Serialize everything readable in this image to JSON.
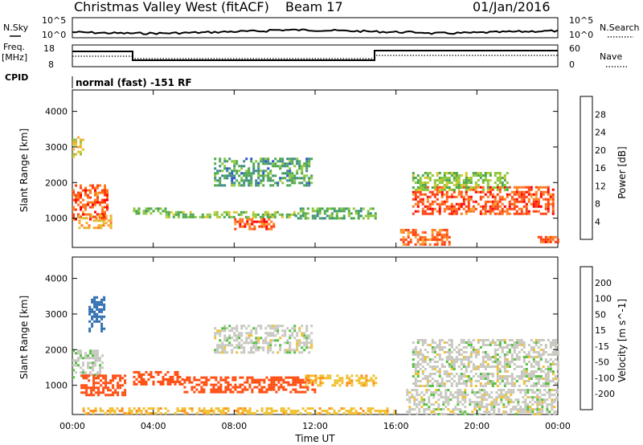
{
  "header": {
    "title": "Christmas Valley West (fitACF)",
    "beam": "Beam 17",
    "date": "01/Jan/2016"
  },
  "top_panels": {
    "nsky_label": "N.Sky",
    "nsearch_label": "N.Search",
    "noise_ticks": [
      "10^5",
      "10^0"
    ],
    "freq_label_1": "Freq.",
    "freq_label_2": "[MHz]",
    "freq_ticks": [
      "18",
      "8"
    ],
    "nave_label": "Nave",
    "nave_ticks": [
      "60",
      "0"
    ],
    "cpid_label": "CPID",
    "cpid_text": "normal (fast) -151 RF"
  },
  "axes": {
    "ylabel": "Slant Range [km]",
    "xlabel": "Time UT",
    "y_ticks": [
      "1000",
      "2000",
      "3000",
      "4000"
    ],
    "x_ticks": [
      "00:00",
      "04:00",
      "08:00",
      "12:00",
      "16:00",
      "20:00",
      "00:00"
    ]
  },
  "power_colorbar": {
    "label": "Power [dB]",
    "ticks": [
      "4",
      "8",
      "12",
      "16",
      "20",
      "24",
      "28"
    ],
    "colors": [
      "#1c1cff",
      "#2a55c8",
      "#3f8a8a",
      "#4da84d",
      "#8cc83c",
      "#d8c832",
      "#f7a830",
      "#ff7820",
      "#ff4010",
      "#ff0000"
    ]
  },
  "velocity_colorbar": {
    "label": "Velocity [m s^-1]",
    "ticks": [
      "200",
      "100",
      "50",
      "15",
      "-15",
      "-50",
      "-100",
      "-200"
    ],
    "colors": [
      "#2233cc",
      "#2f6eb0",
      "#3a8a4a",
      "#55c040",
      "#c8c8c0",
      "#f0c030",
      "#ff8c1a",
      "#ff4c10",
      "#ff0000"
    ]
  },
  "chart_data": [
    {
      "type": "heatmap",
      "title": "Power",
      "xlabel": "Time UT",
      "ylabel": "Slant Range [km]",
      "xlim": [
        0,
        24
      ],
      "ylim": [
        180,
        4600
      ],
      "colorbar": "Power [dB]",
      "patches": [
        {
          "t0": 0.0,
          "t1": 1.7,
          "r0": 1000,
          "r1": 1950,
          "value": 26
        },
        {
          "t0": 0.3,
          "t1": 1.9,
          "r0": 750,
          "r1": 1100,
          "value": 20
        },
        {
          "t0": 0.0,
          "t1": 0.5,
          "r0": 2700,
          "r1": 3300,
          "value": 18
        },
        {
          "t0": 3.0,
          "t1": 4.6,
          "r0": 1100,
          "r1": 1300,
          "value": 12
        },
        {
          "t0": 4.6,
          "t1": 11.0,
          "r0": 1000,
          "r1": 1200,
          "value": 14
        },
        {
          "t0": 8.0,
          "t1": 10.0,
          "r0": 700,
          "r1": 1000,
          "value": 26
        },
        {
          "t0": 7.0,
          "t1": 11.8,
          "r0": 1900,
          "r1": 2700,
          "value": 10
        },
        {
          "t0": 11.0,
          "t1": 15.0,
          "r0": 1000,
          "r1": 1300,
          "value": 12
        },
        {
          "t0": 16.8,
          "t1": 23.8,
          "r0": 1100,
          "r1": 1900,
          "value": 26
        },
        {
          "t0": 16.8,
          "t1": 21.5,
          "r0": 1800,
          "r1": 2300,
          "value": 14
        },
        {
          "t0": 16.2,
          "t1": 18.6,
          "r0": 250,
          "r1": 700,
          "value": 24
        },
        {
          "t0": 23.0,
          "t1": 24.0,
          "r0": 300,
          "r1": 500,
          "value": 26
        }
      ]
    },
    {
      "type": "heatmap",
      "title": "Velocity",
      "xlabel": "Time UT",
      "ylabel": "Slant Range [km]",
      "xlim": [
        0,
        24
      ],
      "ylim": [
        180,
        4600
      ],
      "colorbar": "Velocity [m s^-1]",
      "patches": [
        {
          "t0": 0.0,
          "t1": 1.5,
          "r0": 1200,
          "r1": 2000,
          "value": 5
        },
        {
          "t0": 0.4,
          "t1": 2.6,
          "r0": 700,
          "r1": 1300,
          "value": -150
        },
        {
          "t0": 0.8,
          "t1": 1.6,
          "r0": 2500,
          "r1": 3500,
          "value": 150
        },
        {
          "t0": 3.0,
          "t1": 5.5,
          "r0": 1050,
          "r1": 1400,
          "value": -120
        },
        {
          "t0": 5.5,
          "t1": 12.0,
          "r0": 800,
          "r1": 1250,
          "value": -140
        },
        {
          "t0": 11.5,
          "t1": 15.0,
          "r0": 1000,
          "r1": 1300,
          "value": -40
        },
        {
          "t0": 7.0,
          "t1": 11.8,
          "r0": 1900,
          "r1": 2700,
          "value": 0
        },
        {
          "t0": 16.8,
          "t1": 24.0,
          "r0": 1000,
          "r1": 2300,
          "value": 0
        },
        {
          "t0": 16.5,
          "t1": 24.0,
          "r0": 200,
          "r1": 900,
          "value": 0
        },
        {
          "t0": 0.5,
          "t1": 16.0,
          "r0": 200,
          "r1": 380,
          "value": -40
        }
      ]
    }
  ]
}
